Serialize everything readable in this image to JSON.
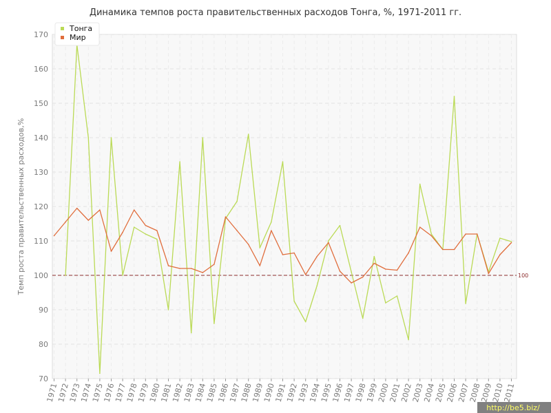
{
  "chart_data": {
    "type": "line",
    "title": "Динамика темпов роста правительственных расходов Тонга, %, 1971-2011 гг.",
    "xlabel": "",
    "ylabel": "Темп роста правительственных расходов,%",
    "ylim": [
      70,
      170
    ],
    "yticks": [
      "70",
      "80",
      "90",
      "100",
      "110",
      "120",
      "130",
      "140",
      "150",
      "160",
      "170"
    ],
    "categories": [
      "1971",
      "1972",
      "1973",
      "1974",
      "1975",
      "1976",
      "1977",
      "1978",
      "1979",
      "1980",
      "1981",
      "1982",
      "1983",
      "1984",
      "1985",
      "1986",
      "1987",
      "1988",
      "1989",
      "1990",
      "1991",
      "1992",
      "1993",
      "1994",
      "1995",
      "1996",
      "1997",
      "1998",
      "1999",
      "2000",
      "2001",
      "2002",
      "2003",
      "2004",
      "2005",
      "2006",
      "2007",
      "2008",
      "2009",
      "2010",
      "2011"
    ],
    "series": [
      {
        "name": "Тонга",
        "color": "#bada55",
        "values": [
          null,
          100,
          167,
          140,
          71.5,
          140,
          100,
          114,
          112,
          110.5,
          90,
          133,
          83.3,
          140,
          86,
          116.5,
          121.5,
          141,
          108,
          115.5,
          133,
          92.5,
          86.5,
          97,
          110,
          114.5,
          101,
          87.5,
          105.5,
          92,
          94,
          81.3,
          126.5,
          112,
          107.5,
          152,
          91.8,
          112,
          101,
          110.8,
          109.8
        ]
      },
      {
        "name": "Мир",
        "color": "#e06d3c",
        "values": [
          111.5,
          115.5,
          119.5,
          116,
          119,
          107,
          112.5,
          119,
          114.5,
          113,
          102.8,
          102,
          102,
          100.8,
          103.2,
          117,
          113,
          109,
          102.8,
          113,
          106,
          106.5,
          100.2,
          105.5,
          109.5,
          101.2,
          97.8,
          99.5,
          103.5,
          101.8,
          101.5,
          106.5,
          114,
          111.5,
          107.5,
          107.5,
          112,
          112,
          100.5,
          106,
          109.5
        ]
      }
    ],
    "reference_line": {
      "value": 100,
      "label": "100",
      "color": "#8a2a2a"
    },
    "grid": true,
    "legend": "top-left"
  },
  "watermark": "http://be5.biz/"
}
